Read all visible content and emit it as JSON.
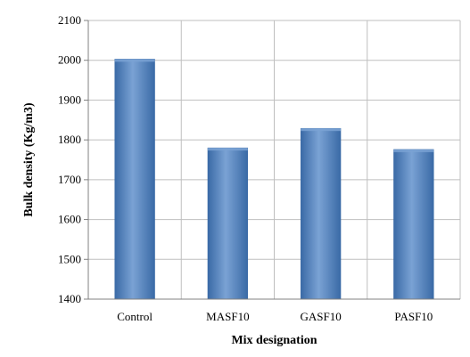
{
  "chart_data": {
    "type": "bar",
    "categories": [
      "Control",
      "MASF10",
      "GASF10",
      "PASF10"
    ],
    "values": [
      2003,
      1780,
      1829,
      1776
    ],
    "xlabel": "Mix designation",
    "ylabel": "Bulk density (Kg/m3)",
    "ylim": [
      1400,
      2100
    ],
    "yticks": [
      1400,
      1500,
      1600,
      1700,
      1800,
      1900,
      2000,
      2100
    ],
    "grid": true,
    "legend": "none",
    "colors": {
      "bar": "#4f81bd",
      "bar_dark": "#3a6aa6",
      "bar_light": "#7aa2d4",
      "grid": "#bfbfbf",
      "axis": "#808080"
    }
  }
}
